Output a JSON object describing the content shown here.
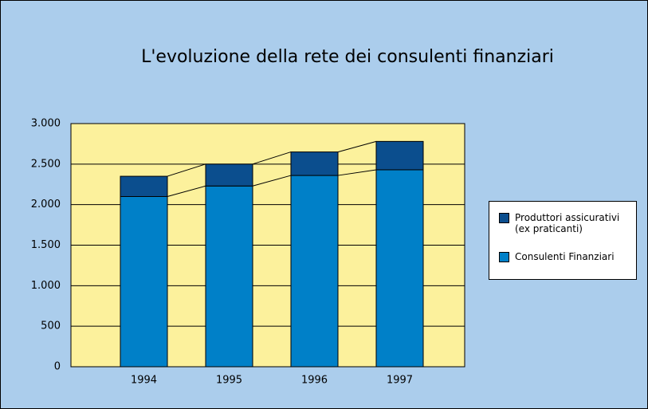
{
  "chart_data": {
    "type": "stacked_bar",
    "title": "L'evoluzione della rete dei consulenti finanziari",
    "categories": [
      "1994",
      "1995",
      "1996",
      "1997"
    ],
    "series": [
      {
        "name": "Consulenti Finanziari",
        "color": "#0080c8",
        "values": [
          2100,
          2230,
          2360,
          2430
        ]
      },
      {
        "name": "Produttori assicurativi (ex praticanti)",
        "color": "#0b4e8e",
        "values": [
          250,
          270,
          290,
          350
        ]
      }
    ],
    "ylim": [
      0,
      3000
    ],
    "yticks": [
      0,
      500,
      {
        "value": 1000,
        "label": "1.000"
      },
      {
        "value": 1500,
        "label": "1.500"
      },
      {
        "value": 2000,
        "label": "2.000"
      },
      {
        "value": 2500,
        "label": "2.500"
      },
      {
        "value": 3000,
        "label": "3.000"
      }
    ],
    "grid": true,
    "legend": "right"
  }
}
